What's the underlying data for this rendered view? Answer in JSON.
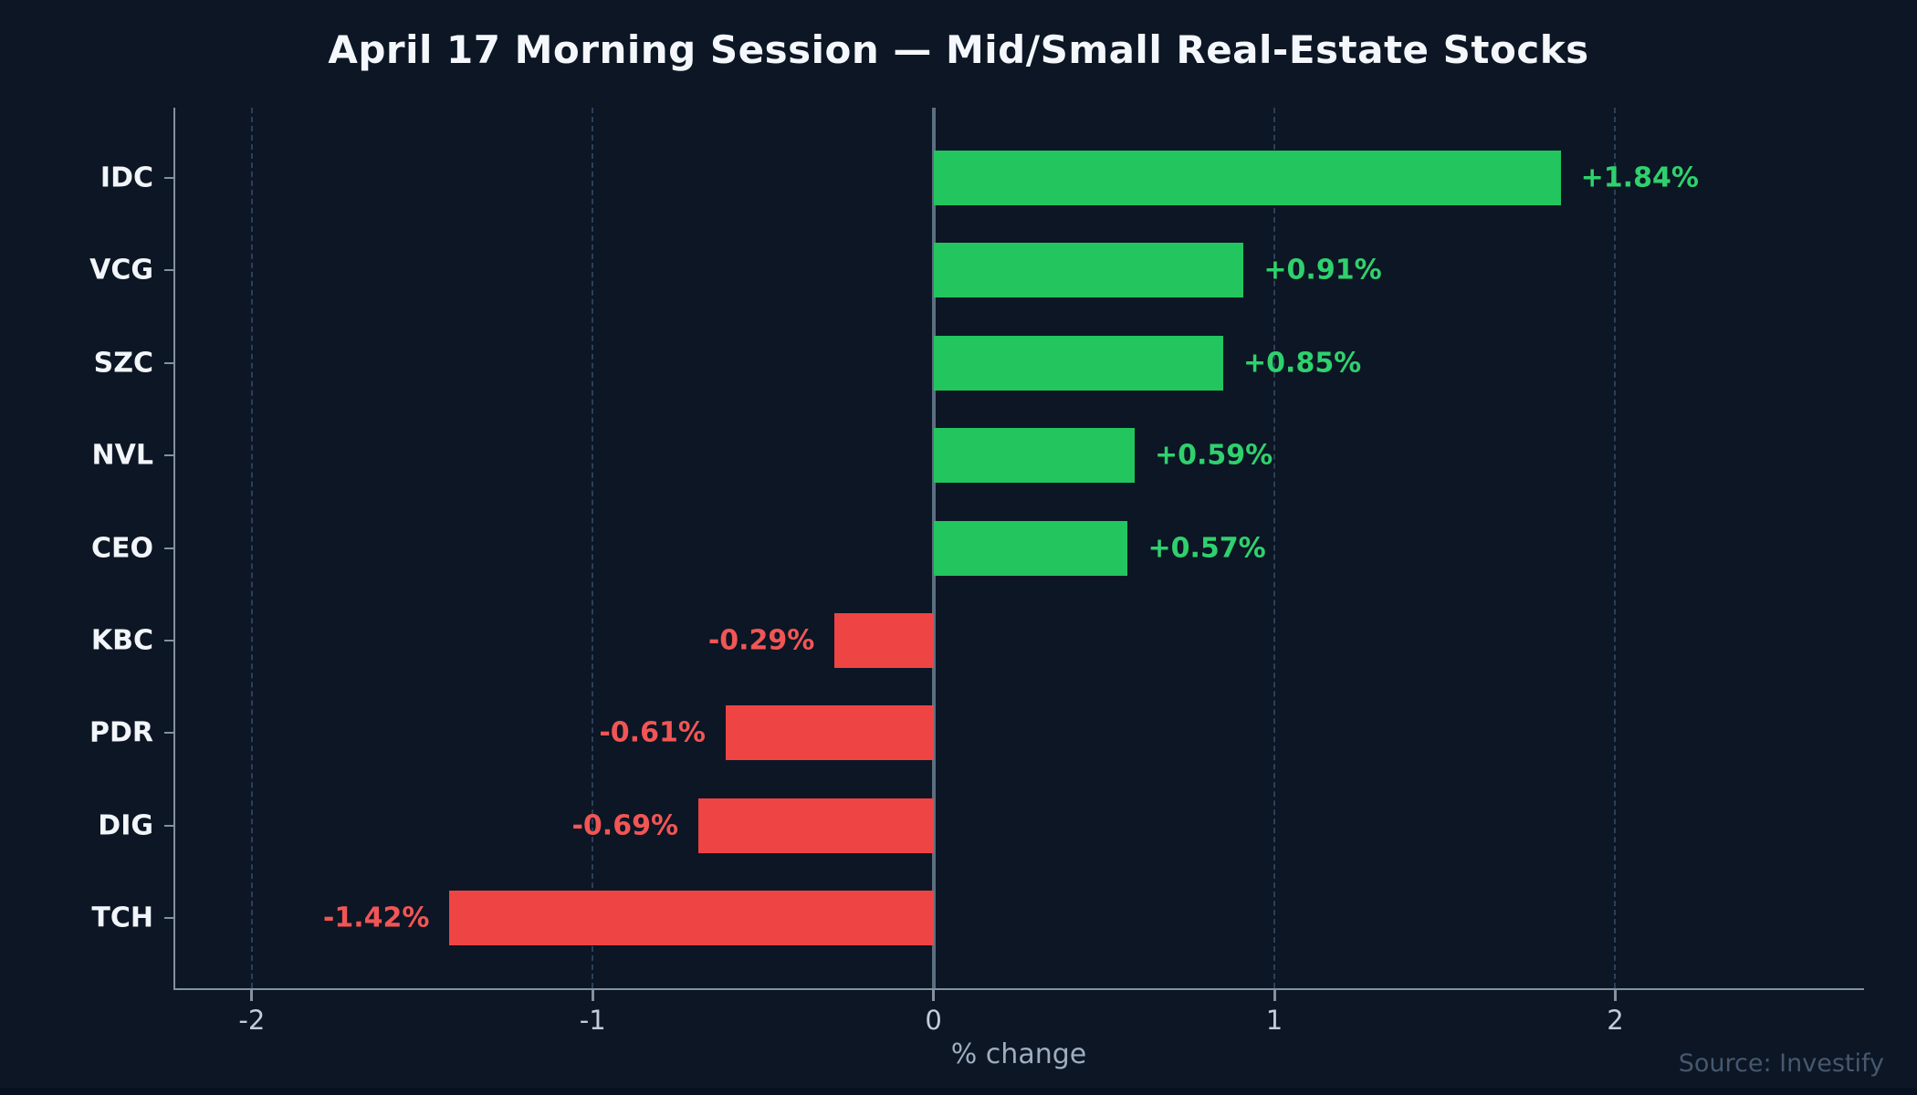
{
  "title": "April 17 Morning Session — Mid/Small Real-Estate Stocks",
  "source_note": "Source: Investify",
  "chart_data": {
    "type": "bar",
    "orientation": "horizontal",
    "title": "April 17 Morning Session — Mid/Small Real-Estate Stocks",
    "xlabel": "% change",
    "categories": [
      "IDC",
      "VCG",
      "SZC",
      "NVL",
      "CEO",
      "KBC",
      "PDR",
      "DIG",
      "TCH"
    ],
    "values": [
      1.84,
      0.91,
      0.85,
      0.59,
      0.57,
      -0.29,
      -0.61,
      -0.69,
      -1.42
    ],
    "bar_labels": [
      "+1.84%",
      "+0.91%",
      "+0.85%",
      "+0.59%",
      "+0.57%",
      "-0.29%",
      "-0.61%",
      "-0.69%",
      "-1.42%"
    ],
    "x_ticks": [
      -2,
      -1,
      0,
      1,
      2
    ],
    "x_tick_labels": [
      "-2",
      "-1",
      "0",
      "1",
      "2"
    ],
    "xlim": [
      -2.23,
      2.73
    ],
    "grid": {
      "vertical_dashed_at": [
        -2,
        -1,
        1,
        2
      ],
      "zero_line": true,
      "horizontal": false
    },
    "legend": "none",
    "colors": {
      "positive_bar": "#22c55e",
      "negative_bar": "#ef4444",
      "positive_label": "#2fd16d",
      "negative_label": "#f25555",
      "background": "#0c1624",
      "grid_line": "#2c3f5a",
      "zero_line": "#5c6e80",
      "axis_line": "#8391a1",
      "tick_text": "#c3cdd9",
      "category_text": "#f2f5f9",
      "title_text": "#f4f7fb",
      "xlabel_text": "#9fadc0",
      "source_text": "#46586f"
    }
  }
}
